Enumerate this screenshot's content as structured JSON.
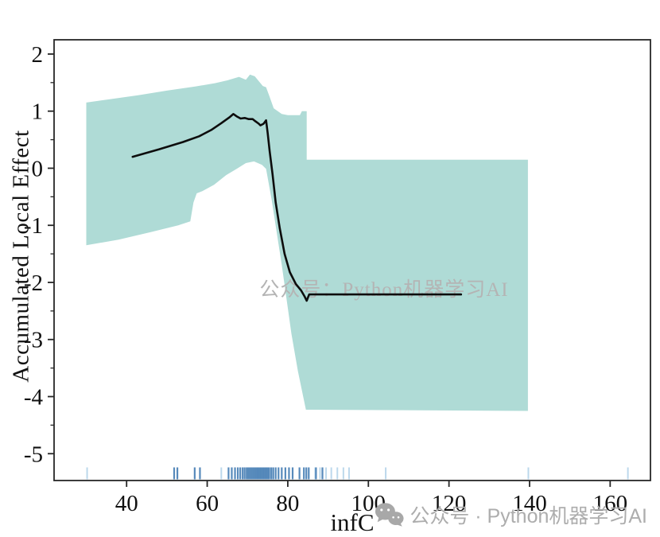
{
  "figure": {
    "xlabel": "infC",
    "ylabel": "Accumulated Local Effect",
    "watermark_center": "公众号：Python机器学习AI",
    "watermark_bottom": "公众号 · Python机器学习AI"
  },
  "chart_data": {
    "type": "line",
    "title": "",
    "xlabel": "infC",
    "ylabel": "Accumulated Local Effect",
    "xlim": [
      22,
      170
    ],
    "ylim": [
      -5.47,
      2.25
    ],
    "xticks": [
      40,
      60,
      80,
      100,
      120,
      140,
      160
    ],
    "yticks": [
      2,
      1,
      0,
      -1,
      -2,
      -3,
      -4,
      -5
    ],
    "yticks_minor": [
      1.5,
      0.5,
      -0.5,
      -1.5,
      -2.5,
      -3.5,
      -4.5
    ],
    "grid": false,
    "legend": null,
    "axis_color": "#262626",
    "tick_label_color": "#111111",
    "series": [
      {
        "name": "ALE",
        "color": "#0d0d0d",
        "points": [
          [
            41.5,
            0.2
          ],
          [
            48,
            0.33
          ],
          [
            54,
            0.46
          ],
          [
            58,
            0.56
          ],
          [
            61,
            0.67
          ],
          [
            63.5,
            0.79
          ],
          [
            65.5,
            0.89
          ],
          [
            66.5,
            0.95
          ],
          [
            67.3,
            0.91
          ],
          [
            68.3,
            0.87
          ],
          [
            69.3,
            0.88
          ],
          [
            70.3,
            0.86
          ],
          [
            71.3,
            0.86
          ],
          [
            72.0,
            0.82
          ],
          [
            72.8,
            0.78
          ],
          [
            73.2,
            0.75
          ],
          [
            74.0,
            0.78
          ],
          [
            74.6,
            0.84
          ],
          [
            75.0,
            0.62
          ],
          [
            75.5,
            0.3
          ],
          [
            76.2,
            -0.1
          ],
          [
            77.0,
            -0.6
          ],
          [
            78.0,
            -1.05
          ],
          [
            79.2,
            -1.5
          ],
          [
            80.5,
            -1.82
          ],
          [
            82.0,
            -2.03
          ],
          [
            83.3,
            -2.14
          ],
          [
            84.2,
            -2.25
          ],
          [
            84.7,
            -2.32
          ],
          [
            85.3,
            -2.21
          ],
          [
            123.0,
            -2.21
          ]
        ]
      }
    ],
    "band": {
      "name": "confidence-interval",
      "color": "#afdbd6",
      "upper": [
        [
          30,
          1.15
        ],
        [
          36,
          1.21
        ],
        [
          43,
          1.28
        ],
        [
          50,
          1.36
        ],
        [
          57,
          1.43
        ],
        [
          62,
          1.49
        ],
        [
          65,
          1.54
        ],
        [
          67.9,
          1.6
        ],
        [
          69.6,
          1.55
        ],
        [
          70.6,
          1.64
        ],
        [
          71.8,
          1.61
        ],
        [
          73.8,
          1.44
        ],
        [
          74.6,
          1.42
        ],
        [
          75.5,
          1.25
        ],
        [
          76.5,
          1.05
        ],
        [
          78.5,
          0.95
        ],
        [
          80,
          0.93
        ],
        [
          83,
          0.93
        ],
        [
          83.5,
          1.0
        ],
        [
          84.7,
          1.0
        ],
        [
          84.7,
          0.15
        ],
        [
          139.6,
          0.15
        ]
      ],
      "lower": [
        [
          30,
          -1.35
        ],
        [
          38,
          -1.25
        ],
        [
          46,
          -1.12
        ],
        [
          52.8,
          -1.0
        ],
        [
          55.8,
          -0.93
        ],
        [
          56.6,
          -0.6
        ],
        [
          57.4,
          -0.44
        ],
        [
          58.8,
          -0.4
        ],
        [
          61.7,
          -0.29
        ],
        [
          64.7,
          -0.12
        ],
        [
          67.3,
          -0.01
        ],
        [
          69.6,
          0.09
        ],
        [
          71.6,
          0.12
        ],
        [
          73.6,
          0.06
        ],
        [
          74.6,
          -0.01
        ],
        [
          76,
          -0.55
        ],
        [
          78.5,
          -1.69
        ],
        [
          80.9,
          -2.9
        ],
        [
          82.5,
          -3.55
        ],
        [
          84.5,
          -4.23
        ],
        [
          139.6,
          -4.25
        ]
      ]
    },
    "rug": {
      "color_dark": "#3a76af",
      "color_light": "#bcd8ec",
      "dark_x": [
        51.8,
        52.6,
        56.9,
        58.2,
        65.3,
        66.1,
        66.9,
        67.6,
        68.2,
        68.8,
        69.3,
        69.8,
        70.2,
        70.6,
        71.0,
        71.4,
        71.8,
        72.2,
        72.6,
        73.0,
        73.4,
        73.8,
        74.2,
        74.6,
        75.0,
        75.4,
        75.9,
        76.4,
        77.0,
        77.7,
        78.5,
        79.4,
        80.3,
        81.2,
        82.9,
        84.0,
        84.6,
        85.2,
        87.0,
        88.6
      ],
      "light_x": [
        30.2,
        63.5,
        86.8,
        88.0,
        89.5,
        90.8,
        92.3,
        93.8,
        95.2,
        104.3,
        139.7,
        164.4
      ]
    },
    "watermarks": {
      "center_text": "公众号：Python机器学习AI",
      "center_color": "#b4b4b4",
      "bottom_text": "公众号 · Python机器学习AI",
      "bottom_color": "#adadad"
    }
  }
}
